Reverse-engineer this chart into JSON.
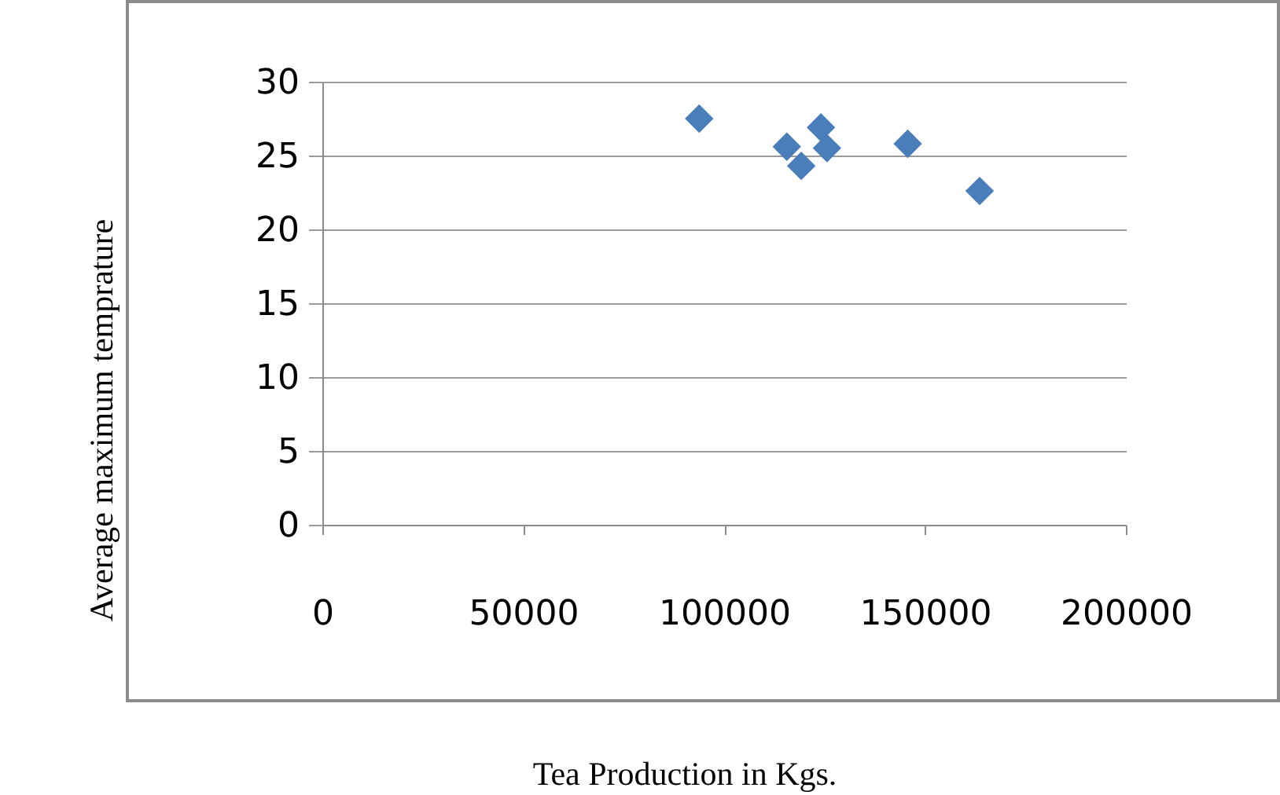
{
  "chart_data": {
    "type": "scatter",
    "xlabel": "Tea Production in Kgs.",
    "ylabel": "Average maximum temprature",
    "x": [
      93800,
      115600,
      119200,
      124100,
      125600,
      145700,
      163600
    ],
    "values": [
      27.5,
      25.6,
      24.3,
      26.9,
      25.5,
      25.8,
      22.6
    ],
    "color": "#4a7ebb",
    "marker": "diamond",
    "xlim": [
      0,
      200000
    ],
    "xticks": [
      0,
      50000,
      100000,
      150000,
      200000
    ],
    "ylim": [
      0,
      30
    ],
    "yticks": [
      0,
      5,
      10,
      15,
      20,
      25,
      30
    ],
    "grid": "y"
  }
}
